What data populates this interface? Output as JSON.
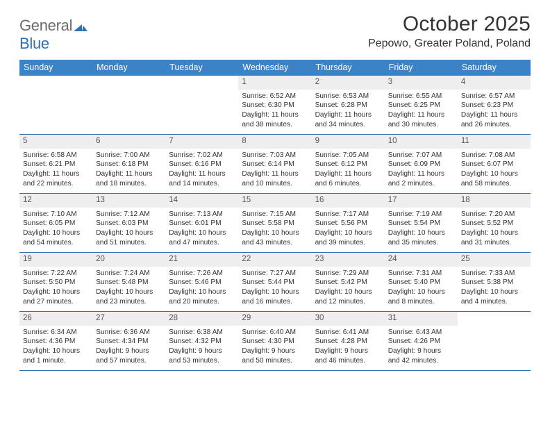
{
  "logo": {
    "text_gray": "General",
    "text_blue": "Blue"
  },
  "title": "October 2025",
  "location": "Pepowo, Greater Poland, Poland",
  "colors": {
    "header_bg": "#3b83c6",
    "header_text": "#ffffff",
    "rule": "#2f6fb3",
    "daynum_bg": "#eeeeee",
    "body_text": "#333333",
    "logo_gray": "#6b6b6b",
    "logo_blue": "#2f6fb3",
    "page_bg": "#ffffff"
  },
  "day_names": [
    "Sunday",
    "Monday",
    "Tuesday",
    "Wednesday",
    "Thursday",
    "Friday",
    "Saturday"
  ],
  "weeks": [
    [
      {
        "empty": true
      },
      {
        "empty": true
      },
      {
        "empty": true
      },
      {
        "day": "1",
        "sunrise": "Sunrise: 6:52 AM",
        "sunset": "Sunset: 6:30 PM",
        "day1": "Daylight: 11 hours",
        "day2": "and 38 minutes."
      },
      {
        "day": "2",
        "sunrise": "Sunrise: 6:53 AM",
        "sunset": "Sunset: 6:28 PM",
        "day1": "Daylight: 11 hours",
        "day2": "and 34 minutes."
      },
      {
        "day": "3",
        "sunrise": "Sunrise: 6:55 AM",
        "sunset": "Sunset: 6:25 PM",
        "day1": "Daylight: 11 hours",
        "day2": "and 30 minutes."
      },
      {
        "day": "4",
        "sunrise": "Sunrise: 6:57 AM",
        "sunset": "Sunset: 6:23 PM",
        "day1": "Daylight: 11 hours",
        "day2": "and 26 minutes."
      }
    ],
    [
      {
        "day": "5",
        "sunrise": "Sunrise: 6:58 AM",
        "sunset": "Sunset: 6:21 PM",
        "day1": "Daylight: 11 hours",
        "day2": "and 22 minutes."
      },
      {
        "day": "6",
        "sunrise": "Sunrise: 7:00 AM",
        "sunset": "Sunset: 6:18 PM",
        "day1": "Daylight: 11 hours",
        "day2": "and 18 minutes."
      },
      {
        "day": "7",
        "sunrise": "Sunrise: 7:02 AM",
        "sunset": "Sunset: 6:16 PM",
        "day1": "Daylight: 11 hours",
        "day2": "and 14 minutes."
      },
      {
        "day": "8",
        "sunrise": "Sunrise: 7:03 AM",
        "sunset": "Sunset: 6:14 PM",
        "day1": "Daylight: 11 hours",
        "day2": "and 10 minutes."
      },
      {
        "day": "9",
        "sunrise": "Sunrise: 7:05 AM",
        "sunset": "Sunset: 6:12 PM",
        "day1": "Daylight: 11 hours",
        "day2": "and 6 minutes."
      },
      {
        "day": "10",
        "sunrise": "Sunrise: 7:07 AM",
        "sunset": "Sunset: 6:09 PM",
        "day1": "Daylight: 11 hours",
        "day2": "and 2 minutes."
      },
      {
        "day": "11",
        "sunrise": "Sunrise: 7:08 AM",
        "sunset": "Sunset: 6:07 PM",
        "day1": "Daylight: 10 hours",
        "day2": "and 58 minutes."
      }
    ],
    [
      {
        "day": "12",
        "sunrise": "Sunrise: 7:10 AM",
        "sunset": "Sunset: 6:05 PM",
        "day1": "Daylight: 10 hours",
        "day2": "and 54 minutes."
      },
      {
        "day": "13",
        "sunrise": "Sunrise: 7:12 AM",
        "sunset": "Sunset: 6:03 PM",
        "day1": "Daylight: 10 hours",
        "day2": "and 51 minutes."
      },
      {
        "day": "14",
        "sunrise": "Sunrise: 7:13 AM",
        "sunset": "Sunset: 6:01 PM",
        "day1": "Daylight: 10 hours",
        "day2": "and 47 minutes."
      },
      {
        "day": "15",
        "sunrise": "Sunrise: 7:15 AM",
        "sunset": "Sunset: 5:58 PM",
        "day1": "Daylight: 10 hours",
        "day2": "and 43 minutes."
      },
      {
        "day": "16",
        "sunrise": "Sunrise: 7:17 AM",
        "sunset": "Sunset: 5:56 PM",
        "day1": "Daylight: 10 hours",
        "day2": "and 39 minutes."
      },
      {
        "day": "17",
        "sunrise": "Sunrise: 7:19 AM",
        "sunset": "Sunset: 5:54 PM",
        "day1": "Daylight: 10 hours",
        "day2": "and 35 minutes."
      },
      {
        "day": "18",
        "sunrise": "Sunrise: 7:20 AM",
        "sunset": "Sunset: 5:52 PM",
        "day1": "Daylight: 10 hours",
        "day2": "and 31 minutes."
      }
    ],
    [
      {
        "day": "19",
        "sunrise": "Sunrise: 7:22 AM",
        "sunset": "Sunset: 5:50 PM",
        "day1": "Daylight: 10 hours",
        "day2": "and 27 minutes."
      },
      {
        "day": "20",
        "sunrise": "Sunrise: 7:24 AM",
        "sunset": "Sunset: 5:48 PM",
        "day1": "Daylight: 10 hours",
        "day2": "and 23 minutes."
      },
      {
        "day": "21",
        "sunrise": "Sunrise: 7:26 AM",
        "sunset": "Sunset: 5:46 PM",
        "day1": "Daylight: 10 hours",
        "day2": "and 20 minutes."
      },
      {
        "day": "22",
        "sunrise": "Sunrise: 7:27 AM",
        "sunset": "Sunset: 5:44 PM",
        "day1": "Daylight: 10 hours",
        "day2": "and 16 minutes."
      },
      {
        "day": "23",
        "sunrise": "Sunrise: 7:29 AM",
        "sunset": "Sunset: 5:42 PM",
        "day1": "Daylight: 10 hours",
        "day2": "and 12 minutes."
      },
      {
        "day": "24",
        "sunrise": "Sunrise: 7:31 AM",
        "sunset": "Sunset: 5:40 PM",
        "day1": "Daylight: 10 hours",
        "day2": "and 8 minutes."
      },
      {
        "day": "25",
        "sunrise": "Sunrise: 7:33 AM",
        "sunset": "Sunset: 5:38 PM",
        "day1": "Daylight: 10 hours",
        "day2": "and 4 minutes."
      }
    ],
    [
      {
        "day": "26",
        "sunrise": "Sunrise: 6:34 AM",
        "sunset": "Sunset: 4:36 PM",
        "day1": "Daylight: 10 hours",
        "day2": "and 1 minute."
      },
      {
        "day": "27",
        "sunrise": "Sunrise: 6:36 AM",
        "sunset": "Sunset: 4:34 PM",
        "day1": "Daylight: 9 hours",
        "day2": "and 57 minutes."
      },
      {
        "day": "28",
        "sunrise": "Sunrise: 6:38 AM",
        "sunset": "Sunset: 4:32 PM",
        "day1": "Daylight: 9 hours",
        "day2": "and 53 minutes."
      },
      {
        "day": "29",
        "sunrise": "Sunrise: 6:40 AM",
        "sunset": "Sunset: 4:30 PM",
        "day1": "Daylight: 9 hours",
        "day2": "and 50 minutes."
      },
      {
        "day": "30",
        "sunrise": "Sunrise: 6:41 AM",
        "sunset": "Sunset: 4:28 PM",
        "day1": "Daylight: 9 hours",
        "day2": "and 46 minutes."
      },
      {
        "day": "31",
        "sunrise": "Sunrise: 6:43 AM",
        "sunset": "Sunset: 4:26 PM",
        "day1": "Daylight: 9 hours",
        "day2": "and 42 minutes."
      },
      {
        "empty": true
      }
    ]
  ]
}
